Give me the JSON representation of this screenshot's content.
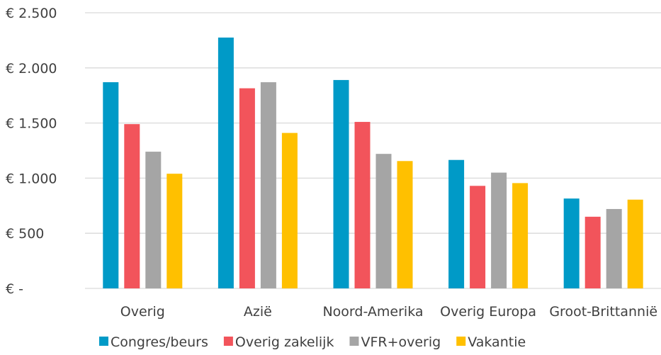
{
  "chart_data": {
    "type": "bar",
    "title": "",
    "xlabel": "",
    "ylabel": "",
    "categories": [
      "Overig",
      "Azië",
      "Noord-Amerika",
      "Overig Europa",
      "Groot-Brittannië"
    ],
    "series": [
      {
        "name": "Congres/beurs",
        "color": "#009AC7",
        "values": [
          1870,
          2275,
          1890,
          1165,
          815
        ]
      },
      {
        "name": "Overig zakelijk",
        "color": "#F2545B",
        "values": [
          1490,
          1815,
          1510,
          930,
          650
        ]
      },
      {
        "name": "VFR+overig",
        "color": "#A5A5A5",
        "values": [
          1240,
          1870,
          1220,
          1050,
          720
        ]
      },
      {
        "name": "Vakantie",
        "color": "#FFC000",
        "values": [
          1040,
          1410,
          1155,
          955,
          805
        ]
      }
    ],
    "ylim": [
      0,
      2500
    ],
    "yticks": [
      0,
      500,
      1000,
      1500,
      2000,
      2500
    ],
    "ytick_labels": [
      "€ -",
      "€ 500",
      "€ 1.000",
      "€ 1.500",
      "€ 2.000",
      "€ 2.500"
    ],
    "grid": true,
    "grid_color": "#D9D9D9",
    "legend_position": "bottom"
  }
}
